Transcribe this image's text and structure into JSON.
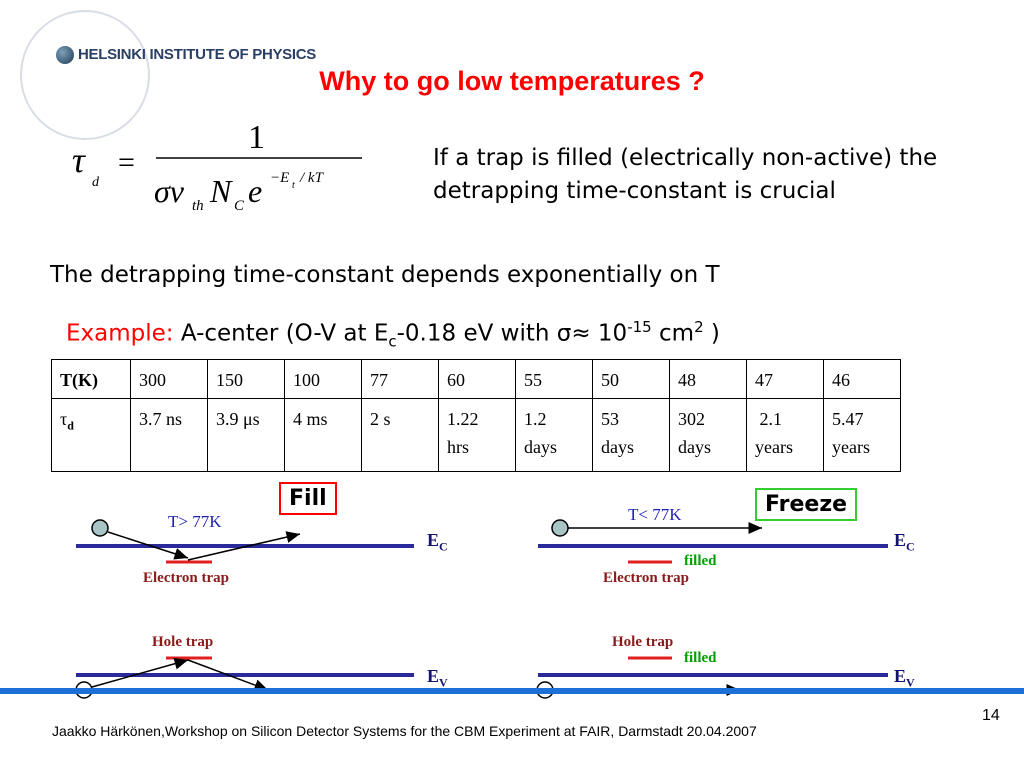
{
  "logo": {
    "text": "HELSINKI INSTITUTE OF PHYSICS"
  },
  "title": "Why to go low temperatures ?",
  "side_text": "If a trap is filled (electrically non-active) the detrapping time-constant is crucial",
  "line1": "The detrapping time-constant depends exponentially on T",
  "example": {
    "prefix": "Example:",
    "text_a": "A-center (O-V at E",
    "sub_c": "c",
    "text_b": "-0.18 eV with ",
    "sigma": "σ≈ 10",
    "exp": "-15",
    "text_c": " cm",
    "exp2": "2",
    "text_d": " )"
  },
  "table": {
    "header": "T(K)",
    "temps": [
      "300",
      "150",
      "100",
      "77",
      "60",
      "55",
      "50",
      "48",
      "47",
      "46"
    ],
    "row_label": "τ",
    "row_label_sub": "d",
    "times": [
      [
        "3.7 ns"
      ],
      [
        "3.9 μs"
      ],
      [
        "4 ms"
      ],
      [
        "2 s"
      ],
      [
        "1.22",
        "hrs"
      ],
      [
        "1.2",
        "days"
      ],
      [
        "53",
        "days"
      ],
      [
        "302",
        "days"
      ],
      [
        " 2.1",
        "years"
      ],
      [
        "5.47",
        "years"
      ]
    ]
  },
  "diagram": {
    "fill_label": "Fill",
    "freeze_label": "Freeze",
    "left_temp": "T> 77K",
    "right_temp": "T< 77K",
    "ec": "E",
    "ec_sub": "C",
    "ev": "E",
    "ev_sub": "V",
    "electron_trap": "Electron trap",
    "hole_trap": "Hole trap",
    "filled": "filled",
    "colors": {
      "band": "#2a2a9a",
      "trap": "#e02020",
      "arrow": "#000000"
    }
  },
  "footer": "Jaakko Härkönen,Workshop on Silicon Detector Systems for the CBM Experiment at FAIR, Darmstadt 20.04.2007",
  "page_number": "14"
}
